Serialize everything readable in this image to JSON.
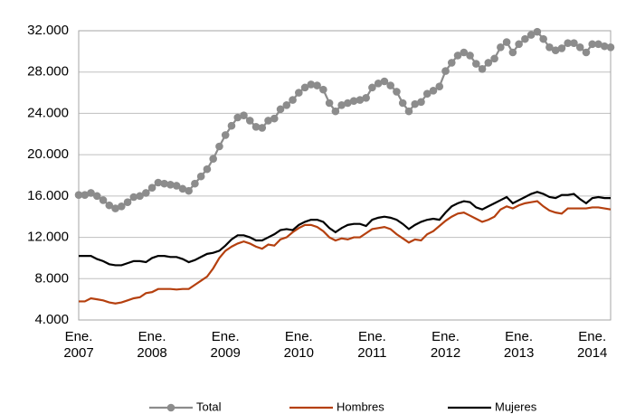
{
  "chart_data": {
    "type": "line",
    "categories": [
      "Ene.\n2007",
      null,
      null,
      null,
      null,
      null,
      null,
      null,
      null,
      null,
      null,
      null,
      "Ene.\n2008",
      null,
      null,
      null,
      null,
      null,
      null,
      null,
      null,
      null,
      null,
      null,
      "Ene.\n2009",
      null,
      null,
      null,
      null,
      null,
      null,
      null,
      null,
      null,
      null,
      null,
      "Ene.\n2010",
      null,
      null,
      null,
      null,
      null,
      null,
      null,
      null,
      null,
      null,
      null,
      "Ene.\n2011",
      null,
      null,
      null,
      null,
      null,
      null,
      null,
      null,
      null,
      null,
      null,
      "Ene.\n2012",
      null,
      null,
      null,
      null,
      null,
      null,
      null,
      null,
      null,
      null,
      null,
      "Ene.\n2013",
      null,
      null,
      null,
      null,
      null,
      null,
      null,
      null,
      null,
      null,
      null,
      "Ene.\n2014",
      null,
      null,
      null
    ],
    "series": [
      {
        "name": "Total",
        "color": "#8c8c8c",
        "marker": true,
        "values": [
          16100,
          16100,
          16300,
          16000,
          15600,
          15100,
          14800,
          15000,
          15400,
          15900,
          16000,
          16300,
          16800,
          17300,
          17200,
          17100,
          17000,
          16700,
          16500,
          17200,
          17900,
          18600,
          19600,
          20800,
          21900,
          22800,
          23600,
          23800,
          23300,
          22700,
          22600,
          23300,
          23500,
          24400,
          24800,
          25300,
          26000,
          26500,
          26800,
          26700,
          26300,
          25000,
          24200,
          24800,
          25000,
          25200,
          25300,
          25500,
          26500,
          26900,
          27100,
          26700,
          26100,
          25000,
          24200,
          24900,
          25100,
          25900,
          26200,
          26600,
          28100,
          28900,
          29600,
          29900,
          29600,
          28800,
          28300,
          28900,
          29300,
          30400,
          30900,
          29900,
          30700,
          31200,
          31600,
          31900,
          31200,
          30400,
          30100,
          30300,
          30800,
          30800,
          30400,
          29900,
          30700,
          30700,
          30500,
          30400
        ]
      },
      {
        "name": "Hombres",
        "color": "#b5400f",
        "marker": false,
        "values": [
          5800,
          5800,
          6100,
          6000,
          5900,
          5700,
          5600,
          5700,
          5900,
          6100,
          6200,
          6600,
          6700,
          7000,
          7000,
          7000,
          6950,
          7000,
          7000,
          7400,
          7800,
          8200,
          9000,
          10000,
          10700,
          11100,
          11400,
          11600,
          11400,
          11100,
          10900,
          11300,
          11200,
          11800,
          12000,
          12500,
          12900,
          13200,
          13200,
          13000,
          12600,
          12000,
          11700,
          11900,
          11800,
          12000,
          12000,
          12400,
          12800,
          12900,
          13000,
          12800,
          12300,
          11900,
          11500,
          11800,
          11700,
          12300,
          12600,
          13100,
          13600,
          14000,
          14300,
          14400,
          14100,
          13800,
          13500,
          13700,
          14000,
          14700,
          15000,
          14800,
          15100,
          15300,
          15400,
          15500,
          15000,
          14600,
          14400,
          14300,
          14800,
          14800,
          14800,
          14800,
          14900,
          14900,
          14800,
          14700
        ]
      },
      {
        "name": "Mujeres",
        "color": "#000000",
        "marker": false,
        "values": [
          10200,
          10200,
          10200,
          9900,
          9700,
          9400,
          9300,
          9300,
          9500,
          9700,
          9700,
          9600,
          10000,
          10200,
          10200,
          10100,
          10100,
          9900,
          9600,
          9800,
          10100,
          10400,
          10500,
          10700,
          11200,
          11800,
          12200,
          12200,
          12000,
          11700,
          11700,
          12000,
          12300,
          12700,
          12800,
          12700,
          13200,
          13500,
          13700,
          13700,
          13500,
          12900,
          12500,
          12900,
          13200,
          13300,
          13300,
          13100,
          13700,
          13900,
          14000,
          13900,
          13700,
          13300,
          12800,
          13200,
          13500,
          13700,
          13800,
          13700,
          14400,
          15000,
          15300,
          15500,
          15400,
          14900,
          14700,
          15000,
          15300,
          15600,
          15900,
          15300,
          15600,
          15900,
          16200,
          16400,
          16200,
          15900,
          15800,
          16100,
          16100,
          16200,
          15700,
          15300,
          15800,
          15900,
          15800,
          15800
        ]
      }
    ],
    "ylim": [
      4000,
      32000
    ],
    "yticks": [
      {
        "value": 4000,
        "label": "4.000"
      },
      {
        "value": 8000,
        "label": "8.000"
      },
      {
        "value": 12000,
        "label": "12.000"
      },
      {
        "value": 16000,
        "label": "16.000"
      },
      {
        "value": 20000,
        "label": "20.000"
      },
      {
        "value": 24000,
        "label": "24.000"
      },
      {
        "value": 28000,
        "label": "28.000"
      },
      {
        "value": 32000,
        "label": "32.000"
      }
    ],
    "grid": true,
    "legend": "bottom"
  }
}
